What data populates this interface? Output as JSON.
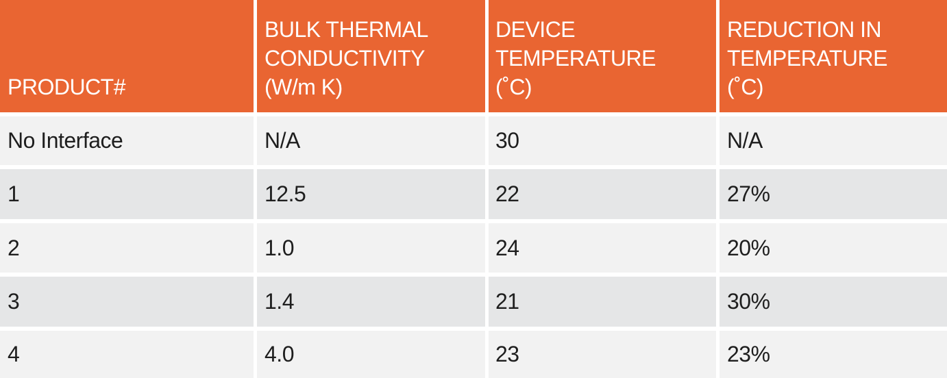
{
  "table": {
    "headers": [
      {
        "lines": [
          "PRODUCT#"
        ]
      },
      {
        "lines": [
          "BULK THERMAL",
          "CONDUCTIVITY",
          "(W/m K)"
        ]
      },
      {
        "lines": [
          "DEVICE",
          "TEMPERATURE",
          "(˚C)"
        ]
      },
      {
        "lines": [
          "REDUCTION IN",
          "TEMPERATURE",
          "(˚C)"
        ]
      }
    ],
    "rows": [
      [
        "No Interface",
        "N/A",
        "30",
        "N/A"
      ],
      [
        "1",
        "12.5",
        "22",
        "27%"
      ],
      [
        "2",
        "1.0",
        "24",
        "20%"
      ],
      [
        "3",
        "1.4",
        "21",
        "30%"
      ],
      [
        "4",
        "4.0",
        "23",
        "23%"
      ]
    ],
    "colors": {
      "header_bg": "#e96532",
      "row_odd_bg": "#f2f2f2",
      "row_even_bg": "#e5e6e7"
    }
  }
}
